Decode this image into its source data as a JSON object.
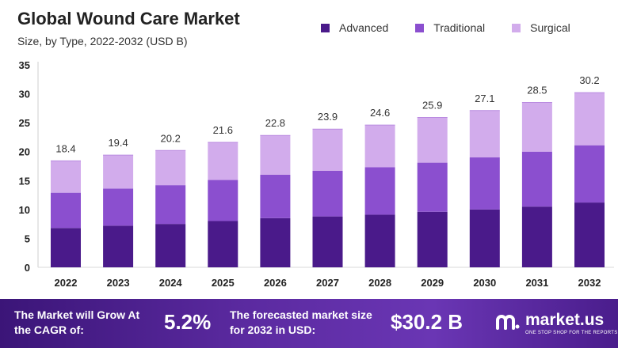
{
  "header": {
    "title": "Global Wound Care Market",
    "subtitle": "Size, by Type, 2022-2032 (USD B)"
  },
  "legend": [
    {
      "label": "Advanced",
      "color": "#4a1a8a"
    },
    {
      "label": "Traditional",
      "color": "#8b4fcf"
    },
    {
      "label": "Surgical",
      "color": "#d2acec"
    }
  ],
  "chart_data": {
    "type": "bar",
    "stacked": true,
    "title": "Global Wound Care Market",
    "subtitle": "Size, by Type, 2022-2032 (USD B)",
    "xlabel": "",
    "ylabel": "",
    "ylim": [
      0,
      35
    ],
    "yticks": [
      0,
      5,
      10,
      15,
      20,
      25,
      30,
      35
    ],
    "categories": [
      "2022",
      "2023",
      "2024",
      "2025",
      "2026",
      "2027",
      "2028",
      "2029",
      "2030",
      "2031",
      "2032"
    ],
    "totals": [
      "18.4",
      "19.4",
      "20.2",
      "21.6",
      "22.8",
      "23.9",
      "24.6",
      "25.9",
      "27.1",
      "28.5",
      "30.2"
    ],
    "series": [
      {
        "name": "Advanced",
        "color": "#4a1a8a",
        "values": [
          6.8,
          7.2,
          7.5,
          8.0,
          8.5,
          8.8,
          9.1,
          9.6,
          10.0,
          10.5,
          11.2
        ]
      },
      {
        "name": "Traditional",
        "color": "#8b4fcf",
        "values": [
          6.1,
          6.4,
          6.7,
          7.1,
          7.5,
          7.9,
          8.2,
          8.5,
          9.0,
          9.5,
          9.9
        ]
      },
      {
        "name": "Surgical",
        "color": "#d2acec",
        "values": [
          5.5,
          5.8,
          6.0,
          6.5,
          6.8,
          7.2,
          7.3,
          7.8,
          8.1,
          8.5,
          9.1
        ]
      }
    ]
  },
  "footer": {
    "cagr_label": "The Market will Grow At the CAGR of:",
    "cagr_value": "5.2%",
    "forecast_label": "The forecasted market size for 2032 in USD:",
    "forecast_value": "$30.2 B",
    "brand_name": "market.us",
    "brand_tagline": "ONE STOP SHOP FOR THE REPORTS"
  }
}
